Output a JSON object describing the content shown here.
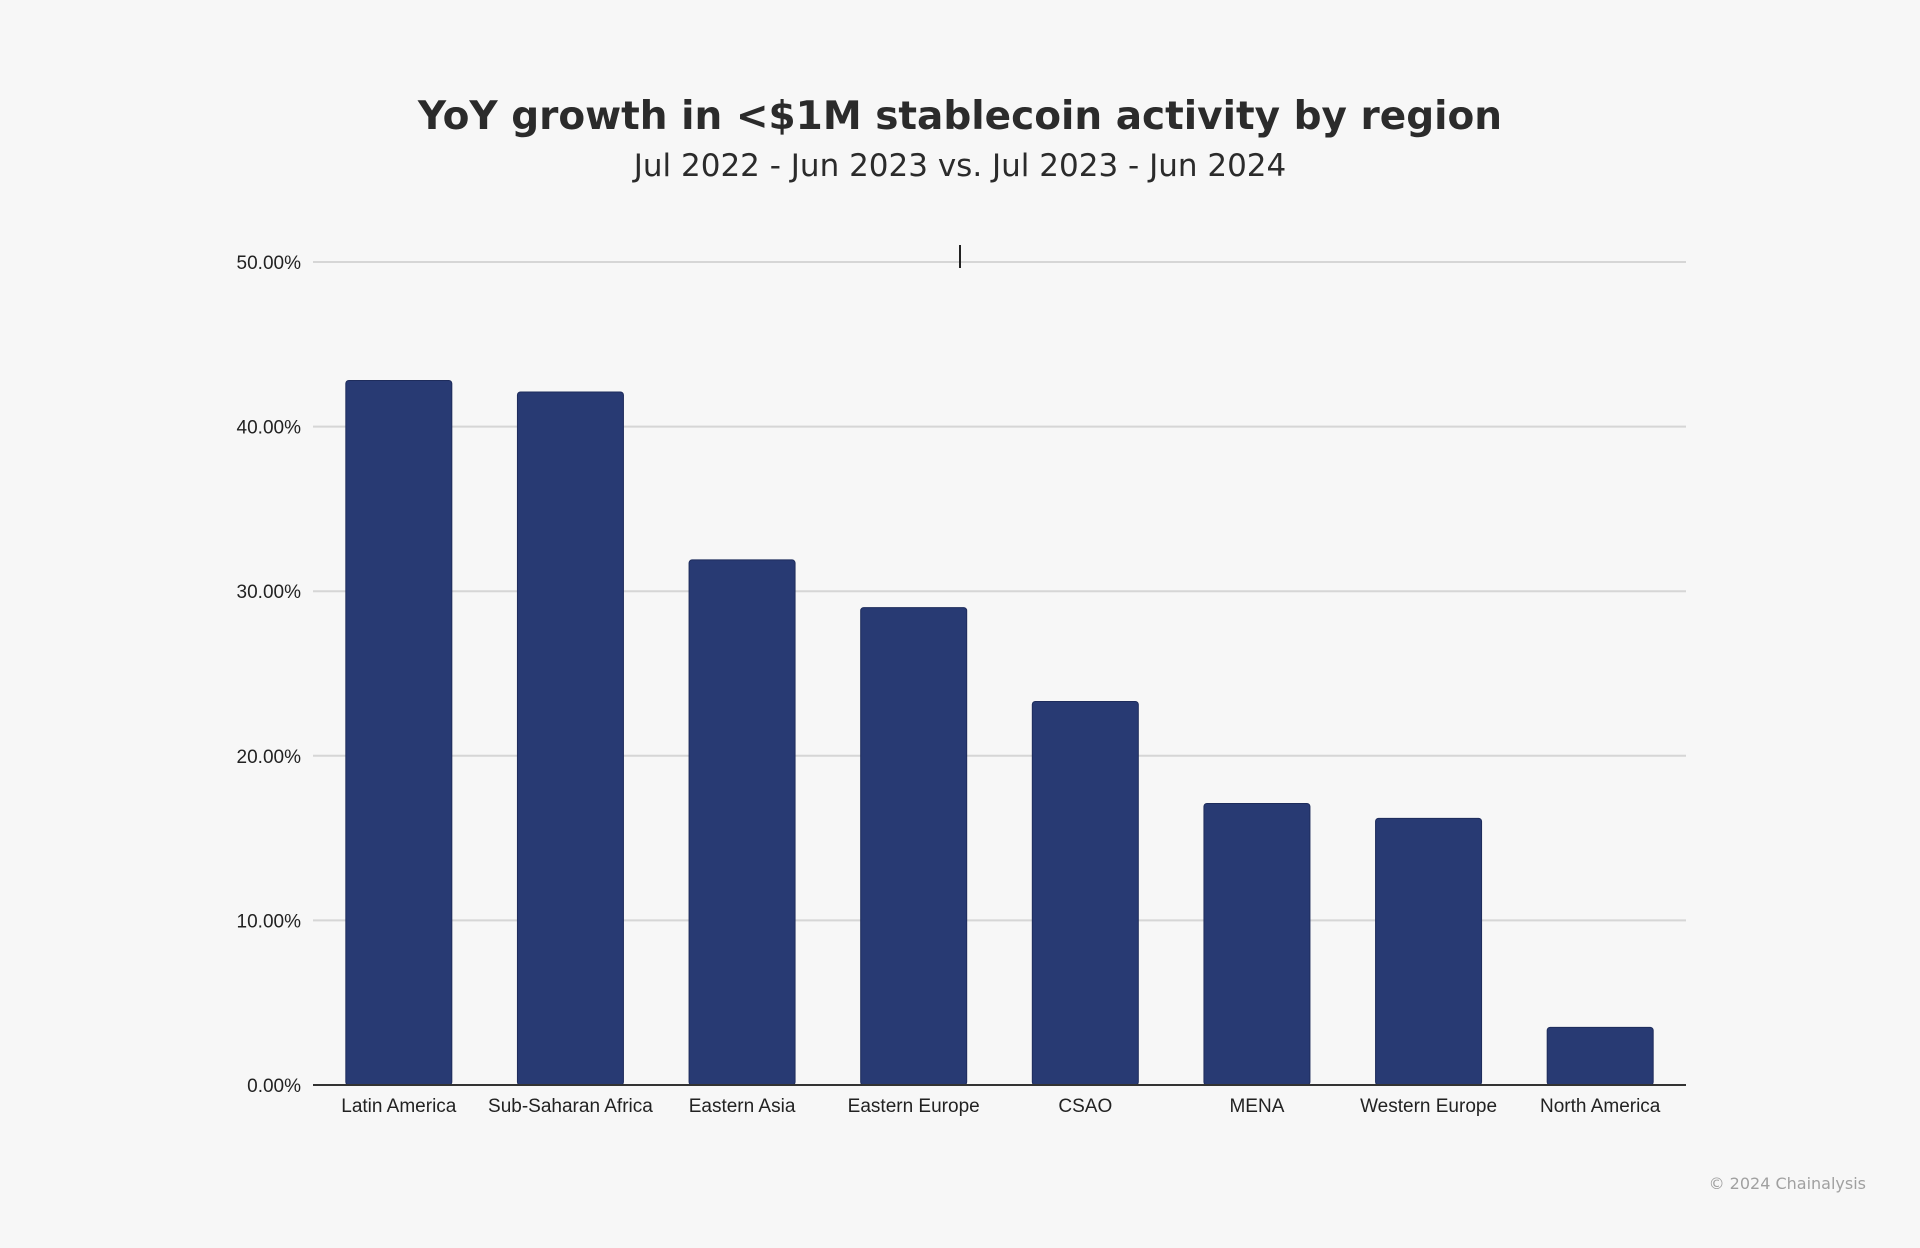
{
  "chart_data": {
    "type": "bar",
    "title": "YoY growth in <$1M stablecoin activity by region",
    "subtitle": "Jul 2022 - Jun 2023 vs. Jul 2023 - Jun 2024",
    "categories": [
      "Latin America",
      "Sub-Saharan Africa",
      "Eastern Asia",
      "Eastern Europe",
      "CSAO",
      "MENA",
      "Western Europe",
      "North America"
    ],
    "values": [
      42.8,
      42.1,
      31.9,
      29.0,
      23.3,
      17.1,
      16.2,
      3.5
    ],
    "unit": "%",
    "ylim": [
      0,
      50
    ],
    "yticks": [
      "0.00%",
      "10.00%",
      "20.00%",
      "30.00%",
      "40.00%",
      "50.00%"
    ],
    "xlabel": "",
    "ylabel": "",
    "grid": true,
    "bar_color": "#283a73"
  },
  "footer": {
    "copyright": "© 2024 Chainalysis"
  }
}
